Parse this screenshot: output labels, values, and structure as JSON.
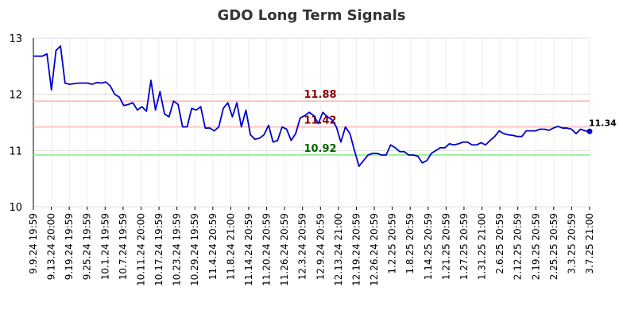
{
  "chart_data": {
    "type": "line",
    "title": "GDO Long Term Signals",
    "xlabel": "",
    "ylabel": "",
    "ylim": [
      10,
      13
    ],
    "yticks": [
      "10",
      "11",
      "12",
      "13"
    ],
    "grid": true,
    "x_tick_labels": [
      "9.9.24 19:59",
      "9.13.24 20:00",
      "9.19.24 19:59",
      "9.25.24 19:59",
      "10.1.24 19:59",
      "10.7.24 19:59",
      "10.11.24 20:00",
      "10.17.24 19:59",
      "10.23.24 19:59",
      "10.29.24 19:59",
      "11.4.24 20:59",
      "11.8.24 21:00",
      "11.14.24 20:59",
      "11.20.24 20:59",
      "11.26.24 20:59",
      "12.3.24 20:59",
      "12.9.24 20:59",
      "12.13.24 21:00",
      "12.19.24 20:59",
      "12.26.24 20:59",
      "1.2.25 20:59",
      "1.8.25 20:59",
      "1.14.25 20:59",
      "1.21.25 20:59",
      "1.27.25 20:59",
      "1.31.25 21:00",
      "2.6.25 20:59",
      "2.12.25 20:59",
      "2.19.25 20:59",
      "2.25.25 20:59",
      "3.3.25 20:59",
      "3.7.25 21:00"
    ],
    "series": [
      {
        "color": "#0000cc",
        "values": [
          12.68,
          12.68,
          12.68,
          12.72,
          12.08,
          12.78,
          12.86,
          12.2,
          12.18,
          12.19,
          12.2,
          12.2,
          12.2,
          12.18,
          12.21,
          12.2,
          12.22,
          12.15,
          12.0,
          11.95,
          11.8,
          11.82,
          11.85,
          11.72,
          11.78,
          11.7,
          12.25,
          11.72,
          12.05,
          11.65,
          11.6,
          11.88,
          11.82,
          11.42,
          11.42,
          11.75,
          11.72,
          11.78,
          11.4,
          11.4,
          11.35,
          11.42,
          11.75,
          11.85,
          11.6,
          11.85,
          11.42,
          11.72,
          11.28,
          11.2,
          11.22,
          11.28,
          11.45,
          11.15,
          11.18,
          11.42,
          11.38,
          11.18,
          11.3,
          11.58,
          11.62,
          11.68,
          11.62,
          11.48,
          11.68,
          11.6,
          11.55,
          11.42,
          11.15,
          11.42,
          11.3,
          11.0,
          10.72,
          10.82,
          10.92,
          10.95,
          10.95,
          10.92,
          10.92,
          11.1,
          11.05,
          10.98,
          10.98,
          10.92,
          10.92,
          10.9,
          10.78,
          10.82,
          10.95,
          11.0,
          11.05,
          11.05,
          11.12,
          11.1,
          11.12,
          11.15,
          11.15,
          11.1,
          11.1,
          11.14,
          11.1,
          11.18,
          11.25,
          11.35,
          11.3,
          11.28,
          11.27,
          11.25,
          11.25,
          11.35,
          11.35,
          11.35,
          11.38,
          11.38,
          11.36,
          11.4,
          11.43,
          11.4,
          11.4,
          11.38,
          11.3,
          11.38,
          11.35,
          11.34
        ]
      }
    ],
    "reference_lines": [
      {
        "value": 11.88,
        "label": "11.88",
        "line_color": "#ffbbbb",
        "label_color": "#8b0000"
      },
      {
        "value": 11.42,
        "label": "11.42",
        "line_color": "#ffbbbb",
        "label_color": "#8b0000"
      },
      {
        "value": 10.92,
        "label": "10.92",
        "line_color": "#88ee88",
        "label_color": "#006400"
      }
    ],
    "last_value_label": "11.34",
    "last_marker_color": "#0000cc"
  }
}
